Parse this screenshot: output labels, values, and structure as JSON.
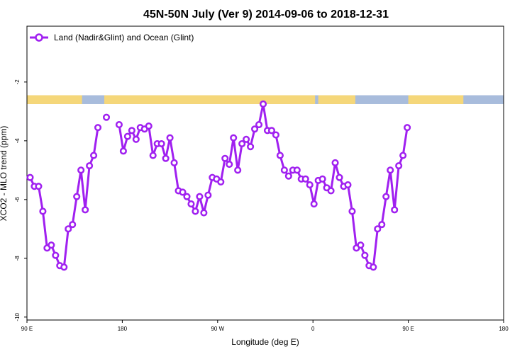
{
  "chart_data": {
    "type": "line",
    "title": "45N-50N July (Ver 9)   2014-09-06 to 2018-12-31",
    "xlabel": "Longitude (deg E)",
    "ylabel": "XCO2 - MLO trend (ppm)",
    "xlim": [
      90,
      450
    ],
    "ylim": [
      -10.1,
      -0.1
    ],
    "x_ticks": [
      {
        "value": 90,
        "label": "90 E"
      },
      {
        "value": 180,
        "label": "180"
      },
      {
        "value": 270,
        "label": "90 W"
      },
      {
        "value": 360,
        "label": "0"
      },
      {
        "value": 450,
        "label": "90 E"
      },
      {
        "value": 540,
        "label": "180"
      }
    ],
    "y_ticks": [
      {
        "value": -10,
        "label": "-10"
      },
      {
        "value": -8,
        "label": "-8"
      },
      {
        "value": -6,
        "label": "-6"
      },
      {
        "value": -4,
        "label": "-4"
      },
      {
        "value": -2,
        "label": "-2"
      }
    ],
    "x_display_max": 540,
    "legend": {
      "position": "top-left"
    },
    "grid": false,
    "series_color": "#a020f0",
    "land_color": "#f5d77a",
    "ocean_color": "#a8bcdc",
    "land_ocean_strip": {
      "y_range": [
        -2.75,
        -2.45
      ],
      "land_segments": [
        [
          90,
          142
        ],
        [
          163,
          362
        ],
        [
          365,
          400
        ],
        [
          450,
          502
        ]
      ]
    },
    "series": [
      {
        "name": "Land (Nadir&Glint) and Ocean (Glint)",
        "points": [
          [
            93,
            -5.25
          ],
          [
            97,
            -5.55
          ],
          [
            101,
            -5.55
          ],
          [
            105,
            -6.4
          ],
          [
            109,
            -7.65
          ],
          [
            113,
            -7.55
          ],
          [
            117,
            -7.9
          ],
          [
            121,
            -8.25
          ],
          [
            125,
            -8.3
          ],
          [
            129,
            -7.0
          ],
          [
            133,
            -6.85
          ],
          [
            137,
            -5.9
          ],
          [
            141,
            -5.0
          ],
          [
            145,
            -6.35
          ],
          [
            149,
            -4.85
          ],
          [
            153,
            -4.5
          ],
          [
            157,
            -3.55
          ],
          null,
          [
            165,
            -3.2
          ],
          null,
          [
            177,
            -3.45
          ],
          [
            181,
            -4.35
          ],
          [
            185,
            -3.85
          ],
          [
            189,
            -3.65
          ],
          [
            193,
            -3.95
          ],
          [
            197,
            -3.55
          ],
          [
            201,
            -3.6
          ],
          [
            205,
            -3.5
          ],
          [
            209,
            -4.5
          ],
          [
            213,
            -4.1
          ],
          [
            217,
            -4.1
          ],
          [
            221,
            -4.6
          ],
          [
            225,
            -3.9
          ],
          [
            229,
            -4.75
          ],
          [
            233,
            -5.7
          ],
          [
            237,
            -5.75
          ],
          [
            241,
            -5.9
          ],
          [
            245,
            -6.15
          ],
          [
            249,
            -6.4
          ],
          [
            253,
            -5.9
          ],
          [
            257,
            -6.45
          ],
          [
            261,
            -5.85
          ],
          [
            265,
            -5.25
          ],
          [
            269,
            -5.3
          ],
          [
            273,
            -5.4
          ],
          [
            277,
            -4.6
          ],
          [
            281,
            -4.8
          ],
          [
            285,
            -3.9
          ],
          [
            289,
            -5.0
          ],
          [
            293,
            -4.1
          ],
          [
            297,
            -3.95
          ],
          [
            301,
            -4.2
          ],
          [
            305,
            -3.6
          ],
          [
            309,
            -3.45
          ],
          [
            313,
            -2.75
          ],
          [
            317,
            -3.65
          ],
          [
            321,
            -3.65
          ],
          [
            325,
            -3.8
          ],
          [
            329,
            -4.5
          ],
          [
            333,
            -5.0
          ],
          [
            337,
            -5.2
          ],
          [
            341,
            -5.0
          ],
          [
            345,
            -5.0
          ],
          [
            349,
            -5.3
          ],
          [
            353,
            -5.3
          ],
          [
            357,
            -5.5
          ],
          [
            361,
            -6.15
          ],
          [
            365,
            -5.35
          ],
          [
            369,
            -5.3
          ],
          [
            373,
            -5.6
          ],
          [
            377,
            -5.7
          ],
          [
            381,
            -4.75
          ],
          [
            385,
            -5.25
          ],
          [
            389,
            -5.55
          ],
          [
            393,
            -5.5
          ],
          [
            397,
            -6.4
          ],
          [
            401,
            -7.65
          ],
          [
            405,
            -7.55
          ],
          [
            409,
            -7.9
          ],
          [
            413,
            -8.25
          ],
          [
            417,
            -8.3
          ],
          [
            421,
            -7.0
          ],
          [
            425,
            -6.85
          ],
          [
            429,
            -5.9
          ],
          [
            433,
            -5.0
          ],
          [
            437,
            -6.35
          ],
          [
            441,
            -4.85
          ],
          [
            445,
            -4.5
          ],
          [
            449,
            -3.55
          ]
        ]
      }
    ]
  }
}
